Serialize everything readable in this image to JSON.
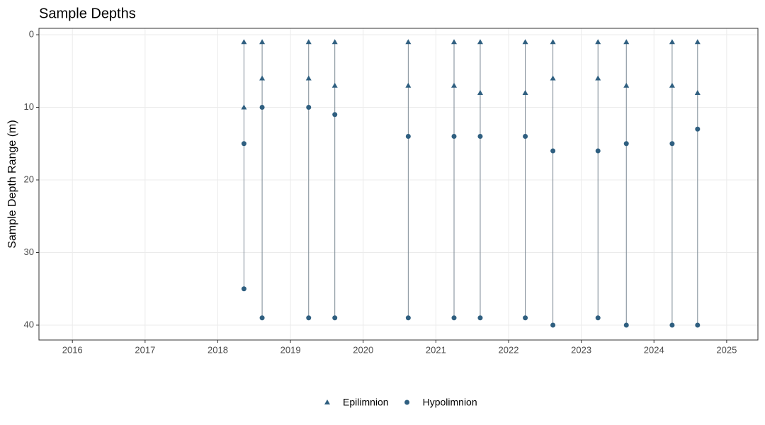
{
  "chart_data": {
    "type": "scatter",
    "title": "Sample Depths",
    "ylabel": "Sample Depth Range (m)",
    "xlim": [
      2015.54,
      2025.43
    ],
    "xticks": [
      2016,
      2017,
      2018,
      2019,
      2020,
      2021,
      2022,
      2023,
      2024,
      2025
    ],
    "ylim": [
      42.05,
      -0.88
    ],
    "yticks": [
      0,
      10,
      20,
      30,
      40
    ],
    "grid": true,
    "legend": "bottom",
    "range_color": "#7a8893",
    "series": [
      {
        "name": "Epilimnion",
        "color": "#2f5f80",
        "shape": "triangle",
        "x": [
          2018.36,
          2018.36,
          2018.61,
          2018.61,
          2019.25,
          2019.25,
          2019.61,
          2019.61,
          2020.62,
          2020.62,
          2021.25,
          2021.25,
          2021.61,
          2021.61,
          2022.23,
          2022.23,
          2022.61,
          2022.61,
          2023.23,
          2023.23,
          2023.62,
          2023.62,
          2024.25,
          2024.25,
          2024.6,
          2024.6
        ],
        "values": [
          1,
          10,
          1,
          6,
          1,
          6,
          1,
          7,
          1,
          7,
          1,
          7,
          1,
          8,
          1,
          8,
          1,
          6,
          1,
          6,
          1,
          7,
          1,
          7,
          1,
          8
        ]
      },
      {
        "name": "Hypolimnion",
        "color": "#2f5f80",
        "shape": "circle",
        "x": [
          2018.36,
          2018.36,
          2018.61,
          2018.61,
          2019.25,
          2019.25,
          2019.61,
          2019.61,
          2020.62,
          2020.62,
          2021.25,
          2021.25,
          2021.61,
          2021.61,
          2022.23,
          2022.23,
          2022.61,
          2022.61,
          2023.23,
          2023.23,
          2023.62,
          2023.62,
          2024.25,
          2024.25,
          2024.6,
          2024.6
        ],
        "values": [
          15,
          35,
          10,
          39,
          10,
          39,
          11,
          39,
          14,
          39,
          14,
          39,
          14,
          39,
          14,
          39,
          16,
          40,
          16,
          39,
          15,
          40,
          15,
          40,
          13,
          40
        ]
      }
    ]
  }
}
